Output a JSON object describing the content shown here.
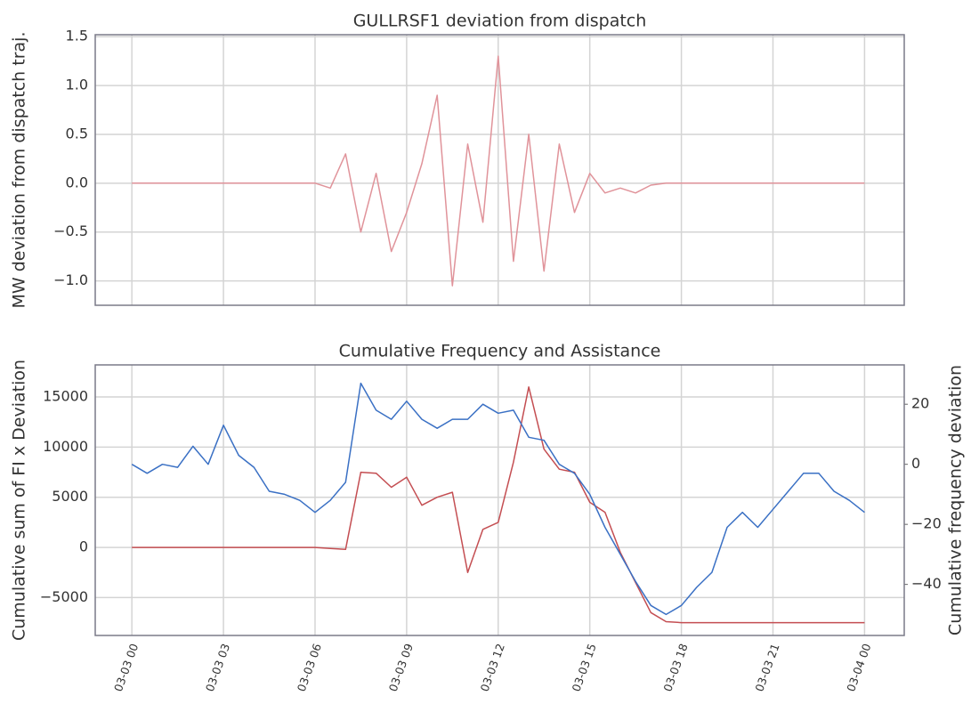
{
  "chart_data": [
    {
      "type": "line",
      "title": "GULLRSF1 deviation from dispatch",
      "y_label": "MW deviation from dispatch traj.",
      "x": [
        0,
        0.5,
        1,
        1.5,
        2,
        2.5,
        3,
        3.5,
        4,
        4.5,
        5,
        5.5,
        6,
        6.5,
        7,
        7.5,
        8,
        8.5,
        9,
        9.5,
        10,
        10.5,
        11,
        11.5,
        12,
        12.5,
        13,
        13.5,
        14,
        14.5,
        15,
        15.5,
        16,
        16.5,
        17,
        17.5,
        18,
        18.5,
        19,
        19.5,
        20,
        20.5,
        21,
        21.5,
        22,
        22.5,
        23,
        23.5,
        24
      ],
      "series": [
        {
          "color": "#e0939a",
          "values": [
            0,
            0,
            0,
            0,
            0,
            0,
            0,
            0,
            0,
            0,
            0,
            0,
            0,
            -0.05,
            0.3,
            -0.5,
            0.1,
            -0.7,
            -0.3,
            0.2,
            0.9,
            -1.05,
            0.4,
            -0.4,
            1.3,
            -0.8,
            0.5,
            -0.9,
            0.4,
            -0.3,
            0.1,
            -0.1,
            -0.05,
            -0.1,
            -0.02,
            0,
            0,
            0,
            0,
            0,
            0,
            0,
            0,
            0,
            0,
            0,
            0,
            0,
            0
          ]
        }
      ],
      "xlim": [
        -1.2,
        25.3
      ],
      "xticks": [
        0,
        3,
        6,
        9,
        12,
        15,
        18,
        21,
        24
      ],
      "ylim": [
        -1.25,
        1.52
      ],
      "yticks": [
        {
          "value": -1.0,
          "label": "−1.0"
        },
        {
          "value": -0.5,
          "label": "−0.5"
        },
        {
          "value": 0,
          "label": "0.0"
        },
        0.5,
        {
          "value": 1.0,
          "label": "1.0"
        },
        1.5
      ],
      "grid": true
    },
    {
      "type": "line",
      "title": "Cumulative Frequency and Assistance",
      "y_label": "Cumulative sum of FI x Deviation",
      "y2_label": "Cumulative frequency deviation",
      "x": [
        0,
        0.5,
        1,
        1.5,
        2,
        2.5,
        3,
        3.5,
        4,
        4.5,
        5,
        5.5,
        6,
        6.5,
        7,
        7.5,
        8,
        8.5,
        9,
        9.5,
        10,
        10.5,
        11,
        11.5,
        12,
        12.5,
        13,
        13.5,
        14,
        14.5,
        15,
        15.5,
        16,
        16.5,
        17,
        17.5,
        18,
        18.5,
        19,
        19.5,
        20,
        20.5,
        21,
        21.5,
        22,
        22.5,
        23,
        23.5,
        24
      ],
      "series": [
        {
          "color": "#c44e52",
          "values": [
            0,
            0,
            0,
            0,
            0,
            0,
            0,
            0,
            0,
            0,
            0,
            0,
            0,
            -100,
            -200,
            7500,
            7400,
            6000,
            7000,
            4200,
            5000,
            5500,
            -2500,
            1800,
            2500,
            8500,
            16000,
            9800,
            7800,
            7500,
            4500,
            3500,
            -500,
            -3500,
            -6500,
            -7400,
            -7500,
            -7500,
            -7500,
            -7500,
            -7500,
            -7500,
            -7500,
            -7500,
            -7500,
            -7500,
            -7500,
            -7500,
            -7500
          ]
        },
        {
          "color": "#3a70c4",
          "axis": "y2",
          "values": [
            0,
            -3,
            0,
            -1,
            6,
            0,
            13,
            3,
            -1,
            -9,
            -10,
            -12,
            -16,
            -12,
            -6,
            27,
            18,
            15,
            21,
            15,
            12,
            15,
            15,
            20,
            17,
            18,
            9,
            8,
            0,
            -3,
            -10,
            -21,
            -30,
            -39,
            -47,
            -50,
            -47,
            -41,
            -36,
            -21,
            -16,
            -21,
            -15,
            -9,
            -3,
            -3,
            -9,
            -12,
            -16
          ]
        }
      ],
      "xlim": [
        -1.2,
        25.3
      ],
      "xticks": [
        {
          "value": 0,
          "label": "03-03 00"
        },
        {
          "value": 3,
          "label": "03-03 03"
        },
        {
          "value": 6,
          "label": "03-03 06"
        },
        {
          "value": 9,
          "label": "03-03 09"
        },
        {
          "value": 12,
          "label": "03-03 12"
        },
        {
          "value": 15,
          "label": "03-03 15"
        },
        {
          "value": 18,
          "label": "03-03 18"
        },
        {
          "value": 21,
          "label": "03-03 21"
        },
        {
          "value": 24,
          "label": "03-04 00"
        }
      ],
      "ylim": [
        -8780,
        18200
      ],
      "yticks": [
        {
          "value": -5000,
          "label": "−5000"
        },
        0,
        5000,
        10000,
        15000
      ],
      "y2lim": [
        -57,
        33.1
      ],
      "y2ticks": [
        {
          "value": -40,
          "label": "−40"
        },
        {
          "value": -20,
          "label": "−20"
        },
        0,
        20
      ],
      "grid": true
    }
  ]
}
